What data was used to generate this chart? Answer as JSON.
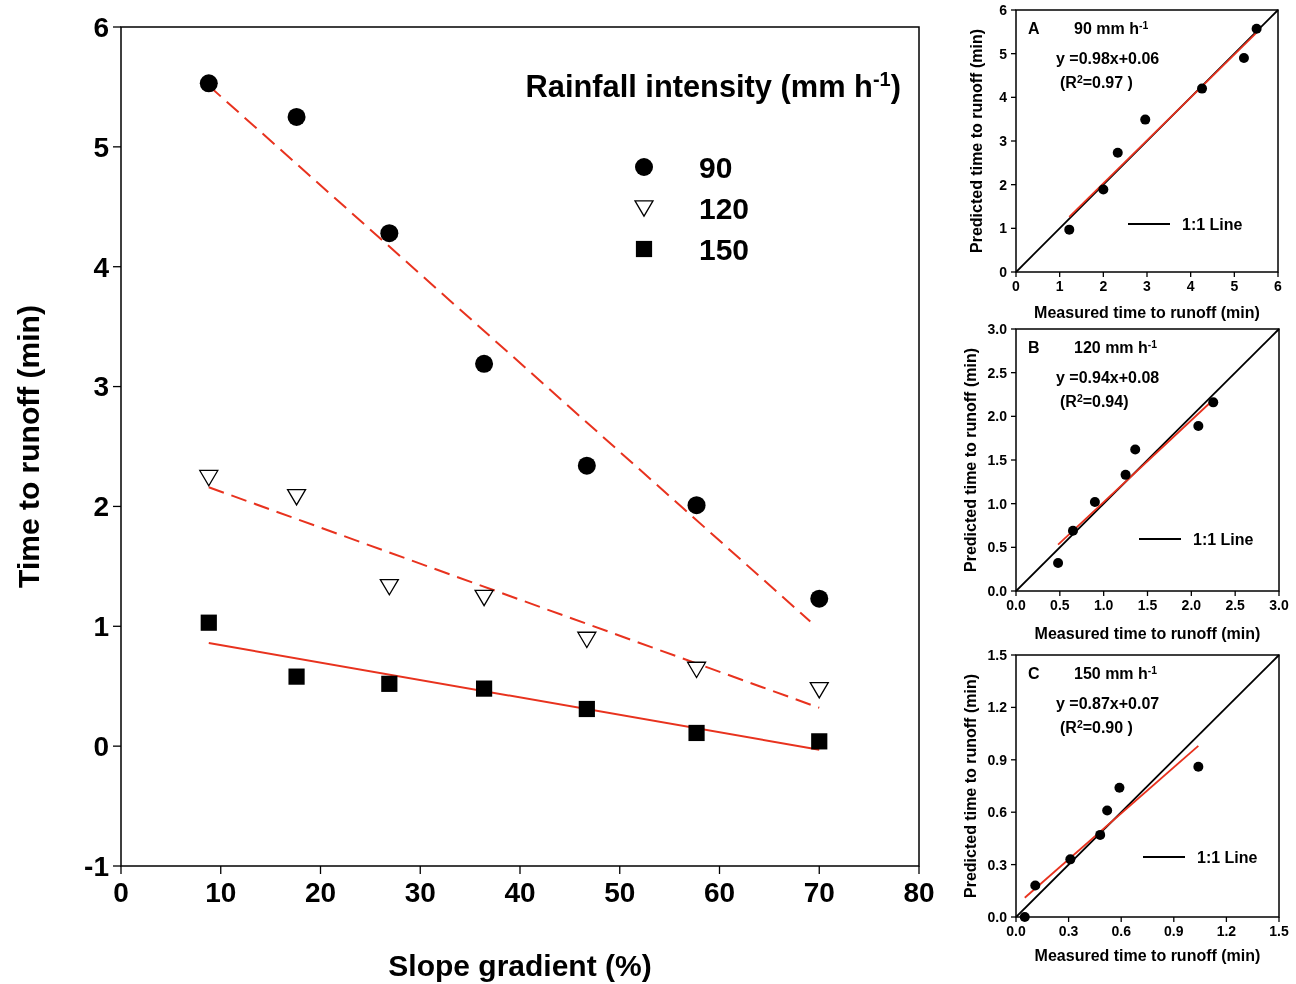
{
  "chart_data": [
    {
      "type": "scatter",
      "xlabel": "Slope gradient (%)",
      "ylabel": "Time to runoff (min)",
      "legend_title": "Rainfall intensity (mm h$^{-1}$)",
      "legend": "top right",
      "grid": false,
      "xlim": [
        0,
        80
      ],
      "xticks": [
        0,
        10,
        20,
        30,
        40,
        50,
        60,
        70,
        80
      ],
      "ylim": [
        -1,
        6
      ],
      "yticks": [
        -1,
        0,
        1,
        2,
        3,
        4,
        5,
        6
      ],
      "series": [
        {
          "name": "90",
          "type": "scatter",
          "marker": "circle",
          "color": "#000000",
          "x": [
            8.8,
            17.6,
            26.9,
            36.4,
            46.7,
            57.7,
            70.0
          ],
          "values": [
            5.53,
            5.25,
            4.28,
            3.19,
            2.34,
            2.01,
            1.23
          ]
        },
        {
          "name": "120",
          "type": "scatter",
          "marker": "triangle",
          "color": "#000000",
          "x": [
            8.8,
            17.6,
            26.9,
            36.4,
            46.7,
            57.7,
            70.0
          ],
          "values": [
            2.24,
            2.08,
            1.33,
            1.24,
            0.89,
            0.64,
            0.47
          ]
        },
        {
          "name": "150",
          "type": "scatter",
          "marker": "square",
          "color": "#000000",
          "x": [
            8.8,
            17.6,
            26.9,
            36.4,
            46.7,
            57.7,
            70.0
          ],
          "values": [
            1.03,
            0.58,
            0.52,
            0.48,
            0.31,
            0.11,
            0.04
          ]
        },
        {
          "type": "line",
          "line_style": "dashed",
          "color": "#e8321e",
          "x": [
            8.8,
            69.1
          ],
          "values": [
            5.51,
            1.04
          ]
        },
        {
          "type": "line",
          "line_style": "dashed",
          "color": "#e8321e",
          "x": [
            8.8,
            70.0
          ],
          "values": [
            2.16,
            0.32
          ]
        },
        {
          "type": "line",
          "line_style": "solid",
          "color": "#e8321e",
          "x": [
            8.8,
            70.0
          ],
          "values": [
            0.86,
            -0.03
          ]
        }
      ]
    },
    {
      "type": "scatter",
      "xlabel": "Measured time to runoff (min)",
      "ylabel": "Predicted time to runoff (min)",
      "legend": "bottom right",
      "grid": false,
      "xlim": [
        0,
        6
      ],
      "xticks": [
        0,
        1,
        2,
        3,
        4,
        5,
        6
      ],
      "ylim": [
        0,
        6
      ],
      "yticks": [
        0,
        1,
        2,
        3,
        4,
        5,
        6
      ],
      "annotations": [
        "A",
        "90 mm h$^{-1}$",
        "y =0.98x+0.06",
        "(R$^{2}$=0.97 )"
      ],
      "series": [
        {
          "name": "1:1 Line",
          "type": "line",
          "line_style": "solid",
          "color": "#000000",
          "x": [
            0,
            6
          ],
          "values": [
            0,
            6
          ]
        },
        {
          "type": "line",
          "line_style": "solid",
          "color": "#e8321e",
          "x": [
            1.22,
            5.51
          ],
          "values": [
            1.26,
            5.48
          ]
        },
        {
          "type": "scatter",
          "marker": "circle",
          "color": "#000000",
          "x": [
            1.22,
            2.0,
            2.33,
            2.96,
            4.26,
            5.22,
            5.51
          ],
          "values": [
            0.97,
            1.89,
            2.73,
            3.49,
            4.2,
            4.9,
            5.57
          ]
        }
      ]
    },
    {
      "type": "scatter",
      "xlabel": "Measured time to runoff (min)",
      "ylabel": "Predicted time to runoff (min)",
      "legend": "bottom right",
      "grid": false,
      "xlim": [
        0,
        3
      ],
      "xticks": [
        {
          "value": 0,
          "label": "0.0"
        },
        {
          "value": 0.5,
          "label": "0.5"
        },
        {
          "value": 1,
          "label": "1.0"
        },
        {
          "value": 1.5,
          "label": "1.5"
        },
        {
          "value": 2,
          "label": "2.0"
        },
        {
          "value": 2.5,
          "label": "2.5"
        },
        {
          "value": 3,
          "label": "3.0"
        }
      ],
      "ylim": [
        0,
        3
      ],
      "yticks": [
        {
          "value": 0,
          "label": "0.0"
        },
        {
          "value": 0.5,
          "label": "0.5"
        },
        {
          "value": 1,
          "label": "1.0"
        },
        {
          "value": 1.5,
          "label": "1.5"
        },
        {
          "value": 2,
          "label": "2.0"
        },
        {
          "value": 2.5,
          "label": "2.5"
        },
        {
          "value": 3,
          "label": "3.0"
        }
      ],
      "annotations": [
        "B",
        "120 mm h$^{-1}$",
        "y =0.94x+0.08",
        "(R$^{2}$=0.94)"
      ],
      "series": [
        {
          "name": "1:1 Line",
          "type": "line",
          "line_style": "solid",
          "color": "#000000",
          "x": [
            0,
            3
          ],
          "values": [
            0,
            3
          ]
        },
        {
          "type": "line",
          "line_style": "solid",
          "color": "#e8321e",
          "x": [
            0.48,
            2.25
          ],
          "values": [
            0.53,
            2.19
          ]
        },
        {
          "type": "scatter",
          "marker": "circle",
          "color": "#000000",
          "x": [
            0.48,
            0.65,
            0.9,
            1.25,
            1.36,
            2.08,
            2.25
          ],
          "values": [
            0.32,
            0.69,
            1.02,
            1.33,
            1.62,
            1.89,
            2.16
          ]
        }
      ]
    },
    {
      "type": "scatter",
      "xlabel": "Measured time to runoff (min)",
      "ylabel": "Predicted time to runoff (min)",
      "legend": "bottom right",
      "grid": false,
      "xlim": [
        0,
        1.5
      ],
      "xticks": [
        {
          "value": 0,
          "label": "0.0"
        },
        {
          "value": 0.3,
          "label": "0.3"
        },
        {
          "value": 0.6,
          "label": "0.6"
        },
        {
          "value": 0.9,
          "label": "0.9"
        },
        {
          "value": 1.2,
          "label": "1.2"
        },
        {
          "value": 1.5,
          "label": "1.5"
        }
      ],
      "ylim": [
        0,
        1.5
      ],
      "yticks": [
        {
          "value": 0,
          "label": "0.0"
        },
        {
          "value": 0.3,
          "label": "0.3"
        },
        {
          "value": 0.6,
          "label": "0.6"
        },
        {
          "value": 0.9,
          "label": "0.9"
        },
        {
          "value": 1.2,
          "label": "1.2"
        },
        {
          "value": 1.5,
          "label": "1.5"
        }
      ],
      "annotations": [
        "C",
        "150 mm h$^{-1}$",
        "y =0.87x+0.07",
        "(R$^{2}$=0.90 )"
      ],
      "series": [
        {
          "name": "1:1 Line",
          "type": "line",
          "line_style": "solid",
          "color": "#000000",
          "x": [
            0,
            1.5
          ],
          "values": [
            0,
            1.5
          ]
        },
        {
          "type": "line",
          "line_style": "solid",
          "color": "#e8321e",
          "x": [
            0.05,
            1.04
          ],
          "values": [
            0.11,
            0.98
          ]
        },
        {
          "type": "scatter",
          "marker": "circle",
          "color": "#000000",
          "x": [
            0.05,
            0.11,
            0.31,
            0.48,
            0.52,
            0.59,
            1.04
          ],
          "values": [
            0.0,
            0.18,
            0.33,
            0.47,
            0.61,
            0.74,
            0.86
          ]
        }
      ]
    }
  ]
}
